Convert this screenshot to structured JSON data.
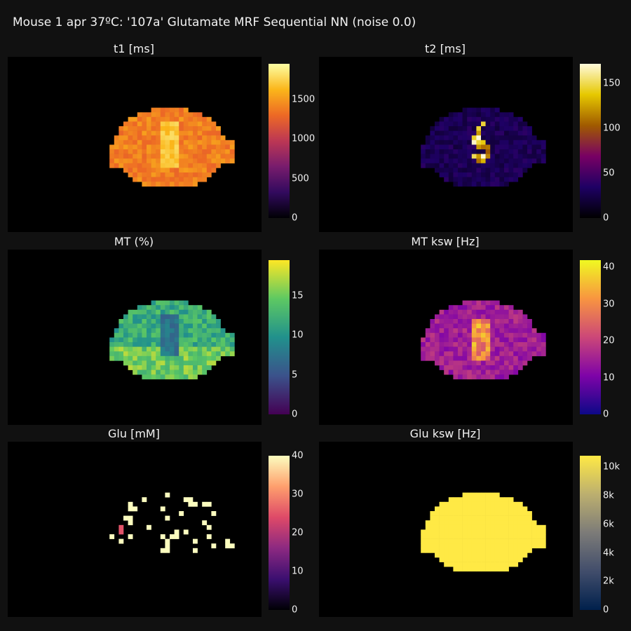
{
  "title": "Mouse 1 apr 37ºC: '107a' Glutamate MRF Sequential NN (noise 0.0)",
  "colors": {
    "background": "#111111",
    "plot_bg": "#000000",
    "text": "#f2f2f2"
  },
  "chart_data": [
    {
      "type": "heatmap",
      "title": "t1 [ms]",
      "colorscale": "inferno",
      "colorbar": {
        "ticks": [
          0,
          500,
          1000,
          1500
        ],
        "ticktext": [
          "0",
          "500",
          "1000",
          "1500"
        ],
        "range": [
          0,
          1950
        ]
      },
      "description_values": {
        "typical": 1400,
        "center_max": 1800
      }
    },
    {
      "type": "heatmap",
      "title": "t2 [ms]",
      "colorscale": "electric",
      "colorbar": {
        "ticks": [
          0,
          50,
          100,
          150
        ],
        "ticktext": [
          "0",
          "50",
          "100",
          "150"
        ],
        "range": [
          0,
          172
        ]
      },
      "description_values": {
        "typical": 30,
        "center_max": 172
      }
    },
    {
      "type": "heatmap",
      "title": "MT (%)",
      "colorscale": "viridis",
      "colorbar": {
        "ticks": [
          0,
          5,
          10,
          15
        ],
        "ticktext": [
          "0",
          "5",
          "10",
          "15"
        ],
        "range": [
          0,
          19.5
        ]
      },
      "description_values": {
        "typical": 12,
        "center_min": 6
      }
    },
    {
      "type": "heatmap",
      "title": "MT ksw [Hz]",
      "colorscale": "plasma",
      "colorbar": {
        "ticks": [
          0,
          10,
          20,
          30,
          40
        ],
        "ticktext": [
          "0",
          "10",
          "20",
          "30",
          "40"
        ],
        "range": [
          0,
          42
        ]
      },
      "description_values": {
        "typical": 15,
        "center_max": 38
      }
    },
    {
      "type": "heatmap",
      "title": "Glu [mM]",
      "colorscale": "magma",
      "colorbar": {
        "ticks": [
          0,
          10,
          20,
          30,
          40
        ],
        "ticktext": [
          "0",
          "10",
          "20",
          "30",
          "40"
        ],
        "range": [
          0,
          40
        ]
      },
      "description_values": {
        "sparse_value": 40,
        "one_pixel": 25
      }
    },
    {
      "type": "heatmap",
      "title": "Glu ksw [Hz]",
      "colorscale": "cividis",
      "colorbar": {
        "ticks": [
          0,
          2000,
          4000,
          6000,
          8000,
          10000
        ],
        "ticktext": [
          "0",
          "2k",
          "4k",
          "6k",
          "8k",
          "10k"
        ],
        "range": [
          0,
          10800
        ]
      },
      "description_values": {
        "uniform": 10800
      }
    }
  ]
}
